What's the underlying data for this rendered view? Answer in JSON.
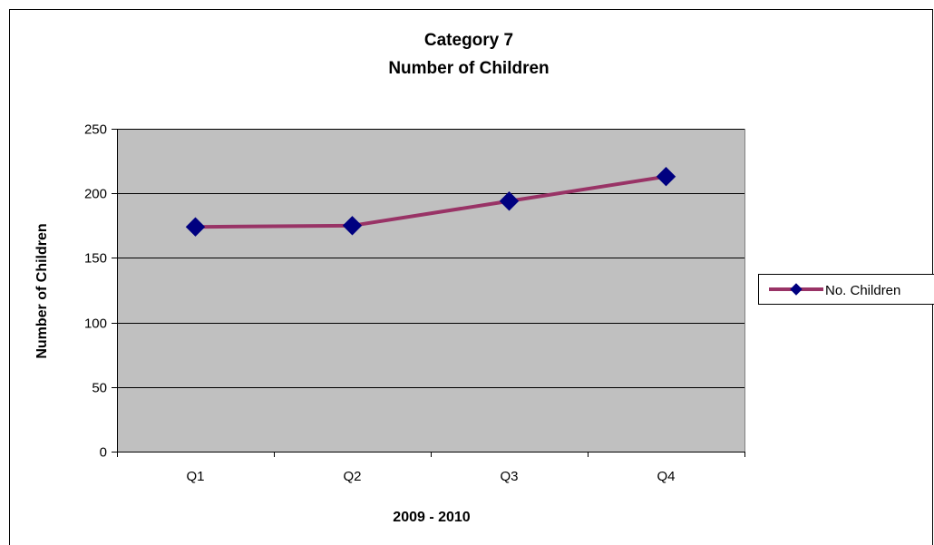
{
  "chart_data": {
    "type": "line",
    "title": [
      "Category 7",
      "Number of Children"
    ],
    "xlabel": "2009 - 2010",
    "ylabel": "Number of Children",
    "categories": [
      "Q1",
      "Q2",
      "Q3",
      "Q4"
    ],
    "ylim": [
      0,
      250
    ],
    "yticks": [
      0,
      50,
      100,
      150,
      200,
      250
    ],
    "grid": true,
    "legend_position": "right",
    "plot_background": "#c0c0c0",
    "series": [
      {
        "name": "No. Children",
        "values": [
          174,
          175,
          194,
          213
        ],
        "line_color": "#993366",
        "marker_color": "#000080",
        "marker": "diamond"
      }
    ]
  }
}
